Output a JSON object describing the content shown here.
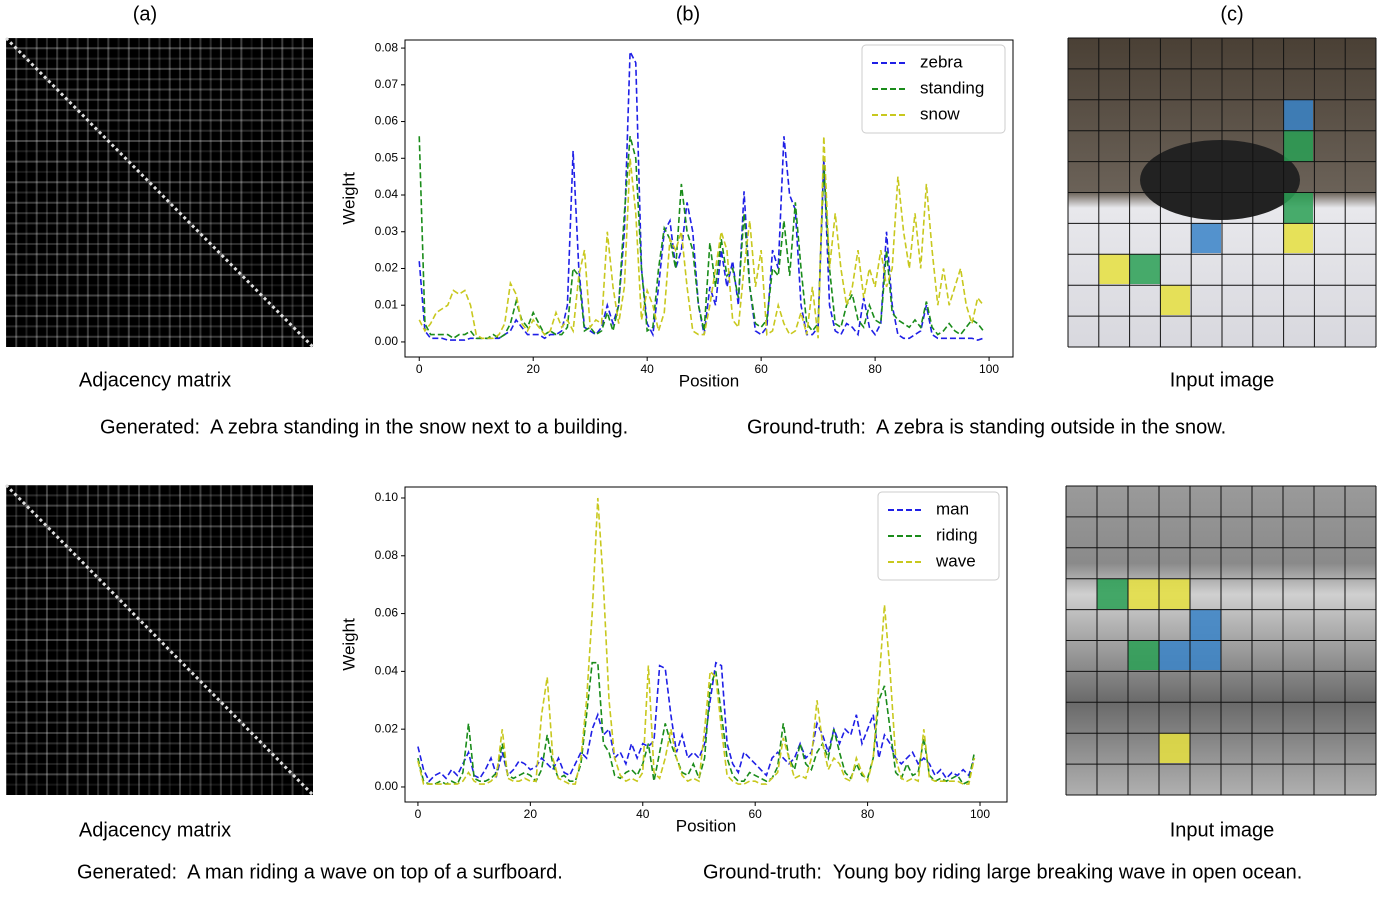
{
  "panel_labels": [
    "(a)",
    "(b)",
    "(c)"
  ],
  "rows": [
    {
      "matrix_label": "Adjacency matrix",
      "image_label": "Input image",
      "generated": "Generated:  A zebra standing in the snow next to a building.",
      "ground_truth": "Ground-truth:  A zebra is standing outside in the snow."
    },
    {
      "matrix_label": "Adjacency matrix",
      "image_label": "Input image",
      "generated": "Generated:  A man riding a wave on top of a surfboard.",
      "ground_truth": "Ground-truth:  Young boy riding large breaking wave in open ocean."
    }
  ],
  "chart_data": [
    {
      "type": "line",
      "x_label": "Position",
      "y_label": "Weight",
      "legend": "upper right",
      "xlim": [
        -2.5,
        104.2
      ],
      "xticks": [
        0,
        20,
        40,
        60,
        80,
        100
      ],
      "ylim": [
        -0.0041,
        0.0822
      ],
      "yticks": [
        {
          "value": 0,
          "label": "0.00"
        },
        {
          "value": 0.01,
          "label": "0.01"
        },
        {
          "value": 0.02,
          "label": "0.02"
        },
        {
          "value": 0.03,
          "label": "0.03"
        },
        {
          "value": 0.04,
          "label": "0.04"
        },
        {
          "value": 0.05,
          "label": "0.05"
        },
        {
          "value": 0.06,
          "label": "0.06"
        },
        {
          "value": 0.07,
          "label": "0.07"
        },
        {
          "value": 0.08,
          "label": "0.08"
        }
      ],
      "x": [
        0,
        1,
        2,
        3,
        4,
        5,
        6,
        7,
        8,
        9,
        10,
        11,
        12,
        13,
        14,
        15,
        16,
        17,
        18,
        19,
        20,
        21,
        22,
        23,
        24,
        25,
        26,
        27,
        28,
        29,
        30,
        31,
        32,
        33,
        34,
        35,
        36,
        37,
        38,
        39,
        40,
        41,
        42,
        43,
        44,
        45,
        46,
        47,
        48,
        49,
        50,
        51,
        52,
        53,
        54,
        55,
        56,
        57,
        58,
        59,
        60,
        61,
        62,
        63,
        64,
        65,
        66,
        67,
        68,
        69,
        70,
        71,
        72,
        73,
        74,
        75,
        76,
        77,
        78,
        79,
        80,
        81,
        82,
        83,
        84,
        85,
        86,
        87,
        88,
        89,
        90,
        91,
        92,
        93,
        94,
        95,
        96,
        97,
        98,
        99
      ],
      "series": [
        {
          "name": "zebra",
          "color": "#1f1fe6",
          "values": [
            0.022,
            0.003,
            0.001,
            0.001,
            0.001,
            0.0005,
            0.0005,
            0.0005,
            0.0005,
            0.001,
            0.001,
            0.001,
            0.001,
            0.001,
            0.001,
            0.002,
            0.003,
            0.006,
            0.004,
            0.002,
            0.002,
            0.002,
            0.001,
            0.002,
            0.002,
            0.003,
            0.01,
            0.052,
            0.02,
            0.004,
            0.003,
            0.002,
            0.004,
            0.01,
            0.005,
            0.01,
            0.03,
            0.079,
            0.076,
            0.02,
            0.005,
            0.002,
            0.015,
            0.03,
            0.033,
            0.02,
            0.025,
            0.038,
            0.03,
            0.01,
            0.002,
            0.015,
            0.01,
            0.025,
            0.015,
            0.022,
            0.01,
            0.041,
            0.015,
            0.003,
            0.002,
            0.004,
            0.025,
            0.02,
            0.056,
            0.04,
            0.036,
            0.01,
            0.002,
            0.002,
            0.004,
            0.05,
            0.01,
            0.003,
            0.002,
            0.005,
            0.004,
            0.002,
            0.012,
            0.004,
            0.002,
            0.005,
            0.03,
            0.01,
            0.002,
            0.001,
            0.001,
            0.002,
            0.003,
            0.01,
            0.002,
            0.001,
            0.001,
            0.001,
            0.001,
            0.001,
            0.001,
            0.001,
            0.0005,
            0.001
          ]
        },
        {
          "name": "standing",
          "color": "#1a8c1a",
          "values": [
            0.056,
            0.005,
            0.002,
            0.002,
            0.002,
            0.002,
            0.001,
            0.002,
            0.002,
            0.003,
            0.001,
            0.001,
            0.001,
            0.002,
            0.001,
            0.002,
            0.005,
            0.011,
            0.006,
            0.004,
            0.008,
            0.005,
            0.002,
            0.003,
            0.002,
            0.002,
            0.004,
            0.02,
            0.018,
            0.003,
            0.004,
            0.002,
            0.003,
            0.008,
            0.003,
            0.01,
            0.035,
            0.056,
            0.05,
            0.02,
            0.003,
            0.004,
            0.02,
            0.031,
            0.028,
            0.02,
            0.043,
            0.03,
            0.025,
            0.01,
            0.003,
            0.027,
            0.015,
            0.028,
            0.018,
            0.02,
            0.012,
            0.035,
            0.015,
            0.005,
            0.004,
            0.006,
            0.02,
            0.018,
            0.033,
            0.018,
            0.038,
            0.02,
            0.005,
            0.003,
            0.005,
            0.048,
            0.02,
            0.005,
            0.004,
            0.01,
            0.013,
            0.006,
            0.004,
            0.01,
            0.006,
            0.005,
            0.025,
            0.008,
            0.006,
            0.005,
            0.004,
            0.006,
            0.004,
            0.011,
            0.004,
            0.002,
            0.003,
            0.005,
            0.003,
            0.002,
            0.004,
            0.006,
            0.005,
            0.003
          ]
        },
        {
          "name": "snow",
          "color": "#c8c81e",
          "values": [
            0.006,
            0.003,
            0.005,
            0.008,
            0.009,
            0.01,
            0.014,
            0.013,
            0.014,
            0.01,
            0.002,
            0.001,
            0.001,
            0.001,
            0.002,
            0.005,
            0.016,
            0.013,
            0.005,
            0.003,
            0.006,
            0.004,
            0.002,
            0.003,
            0.008,
            0.004,
            0.006,
            0.003,
            0.018,
            0.025,
            0.004,
            0.006,
            0.005,
            0.03,
            0.015,
            0.005,
            0.015,
            0.05,
            0.035,
            0.006,
            0.014,
            0.01,
            0.003,
            0.008,
            0.028,
            0.025,
            0.03,
            0.015,
            0.003,
            0.002,
            0.002,
            0.01,
            0.02,
            0.03,
            0.025,
            0.006,
            0.004,
            0.02,
            0.033,
            0.015,
            0.025,
            0.002,
            0.003,
            0.01,
            0.005,
            0.002,
            0.003,
            0.008,
            0.002,
            0.015,
            0.001,
            0.056,
            0.02,
            0.035,
            0.02,
            0.01,
            0.015,
            0.025,
            0.012,
            0.02,
            0.015,
            0.025,
            0.015,
            0.02,
            0.045,
            0.03,
            0.02,
            0.035,
            0.02,
            0.043,
            0.025,
            0.01,
            0.02,
            0.01,
            0.015,
            0.02,
            0.01,
            0.005,
            0.012,
            0.01
          ]
        }
      ]
    },
    {
      "type": "line",
      "x_label": "Position",
      "y_label": "Weight",
      "legend": "upper right",
      "xlim": [
        -2.3,
        104.8
      ],
      "xticks": [
        0,
        20,
        40,
        60,
        80,
        100
      ],
      "ylim": [
        -0.0052,
        0.1038
      ],
      "yticks": [
        {
          "value": 0,
          "label": "0.00"
        },
        {
          "value": 0.02,
          "label": "0.02"
        },
        {
          "value": 0.04,
          "label": "0.04"
        },
        {
          "value": 0.06,
          "label": "0.06"
        },
        {
          "value": 0.08,
          "label": "0.08"
        },
        {
          "value": 0.1,
          "label": "0.10"
        }
      ],
      "x": [
        0,
        1,
        2,
        3,
        4,
        5,
        6,
        7,
        8,
        9,
        10,
        11,
        12,
        13,
        14,
        15,
        16,
        17,
        18,
        19,
        20,
        21,
        22,
        23,
        24,
        25,
        26,
        27,
        28,
        29,
        30,
        31,
        32,
        33,
        34,
        35,
        36,
        37,
        38,
        39,
        40,
        41,
        42,
        43,
        44,
        45,
        46,
        47,
        48,
        49,
        50,
        51,
        52,
        53,
        54,
        55,
        56,
        57,
        58,
        59,
        60,
        61,
        62,
        63,
        64,
        65,
        66,
        67,
        68,
        69,
        70,
        71,
        72,
        73,
        74,
        75,
        76,
        77,
        78,
        79,
        80,
        81,
        82,
        83,
        84,
        85,
        86,
        87,
        88,
        89,
        90,
        91,
        92,
        93,
        94,
        95,
        96,
        97,
        98,
        99
      ],
      "series": [
        {
          "name": "man",
          "color": "#1f1fe6",
          "values": [
            0.014,
            0.006,
            0.002,
            0.004,
            0.005,
            0.003,
            0.006,
            0.004,
            0.008,
            0.012,
            0.004,
            0.003,
            0.006,
            0.01,
            0.004,
            0.012,
            0.004,
            0.006,
            0.009,
            0.008,
            0.006,
            0.007,
            0.01,
            0.008,
            0.006,
            0.01,
            0.005,
            0.004,
            0.008,
            0.012,
            0.01,
            0.02,
            0.025,
            0.018,
            0.02,
            0.01,
            0.012,
            0.008,
            0.015,
            0.01,
            0.015,
            0.014,
            0.016,
            0.042,
            0.041,
            0.025,
            0.012,
            0.018,
            0.01,
            0.012,
            0.01,
            0.015,
            0.03,
            0.043,
            0.042,
            0.015,
            0.008,
            0.005,
            0.012,
            0.01,
            0.008,
            0.006,
            0.004,
            0.01,
            0.012,
            0.01,
            0.008,
            0.01,
            0.015,
            0.01,
            0.012,
            0.022,
            0.018,
            0.012,
            0.02,
            0.015,
            0.02,
            0.018,
            0.025,
            0.015,
            0.02,
            0.025,
            0.01,
            0.018,
            0.015,
            0.01,
            0.008,
            0.01,
            0.012,
            0.008,
            0.01,
            0.008,
            0.004,
            0.006,
            0.003,
            0.005,
            0.004,
            0.006,
            0.004,
            0.01
          ]
        },
        {
          "name": "riding",
          "color": "#1a8c1a",
          "values": [
            0.01,
            0.002,
            0.001,
            0.001,
            0.002,
            0.001,
            0.002,
            0.001,
            0.005,
            0.022,
            0.003,
            0.002,
            0.002,
            0.003,
            0.005,
            0.015,
            0.004,
            0.003,
            0.004,
            0.005,
            0.004,
            0.002,
            0.006,
            0.018,
            0.008,
            0.003,
            0.004,
            0.002,
            0.002,
            0.008,
            0.025,
            0.043,
            0.043,
            0.015,
            0.012,
            0.004,
            0.003,
            0.005,
            0.006,
            0.004,
            0.008,
            0.015,
            0.002,
            0.012,
            0.022,
            0.015,
            0.01,
            0.005,
            0.004,
            0.008,
            0.003,
            0.01,
            0.035,
            0.04,
            0.025,
            0.01,
            0.004,
            0.002,
            0.002,
            0.005,
            0.004,
            0.003,
            0.002,
            0.003,
            0.007,
            0.022,
            0.01,
            0.006,
            0.015,
            0.008,
            0.006,
            0.012,
            0.015,
            0.01,
            0.02,
            0.012,
            0.005,
            0.003,
            0.008,
            0.004,
            0.003,
            0.01,
            0.03,
            0.035,
            0.02,
            0.005,
            0.003,
            0.008,
            0.004,
            0.005,
            0.017,
            0.004,
            0.002,
            0.003,
            0.002,
            0.003,
            0.004,
            0.001,
            0.002,
            0.012
          ]
        },
        {
          "name": "wave",
          "color": "#c8c81e",
          "values": [
            0.009,
            0.001,
            0.001,
            0.001,
            0.001,
            0.001,
            0.001,
            0.001,
            0.002,
            0.005,
            0.002,
            0.001,
            0.001,
            0.002,
            0.004,
            0.02,
            0.003,
            0.002,
            0.002,
            0.003,
            0.002,
            0.002,
            0.025,
            0.038,
            0.01,
            0.003,
            0.002,
            0.001,
            0.001,
            0.01,
            0.03,
            0.06,
            0.1,
            0.07,
            0.03,
            0.01,
            0.004,
            0.002,
            0.003,
            0.002,
            0.005,
            0.042,
            0.005,
            0.003,
            0.01,
            0.02,
            0.01,
            0.004,
            0.002,
            0.003,
            0.002,
            0.02,
            0.04,
            0.038,
            0.02,
            0.004,
            0.002,
            0.001,
            0.001,
            0.002,
            0.002,
            0.001,
            0.001,
            0.003,
            0.005,
            0.017,
            0.01,
            0.003,
            0.004,
            0.003,
            0.01,
            0.03,
            0.015,
            0.006,
            0.01,
            0.008,
            0.003,
            0.002,
            0.01,
            0.005,
            0.002,
            0.01,
            0.035,
            0.063,
            0.04,
            0.01,
            0.003,
            0.002,
            0.003,
            0.002,
            0.02,
            0.003,
            0.002,
            0.002,
            0.002,
            0.002,
            0.002,
            0.001,
            0.001,
            0.01
          ]
        }
      ]
    }
  ]
}
